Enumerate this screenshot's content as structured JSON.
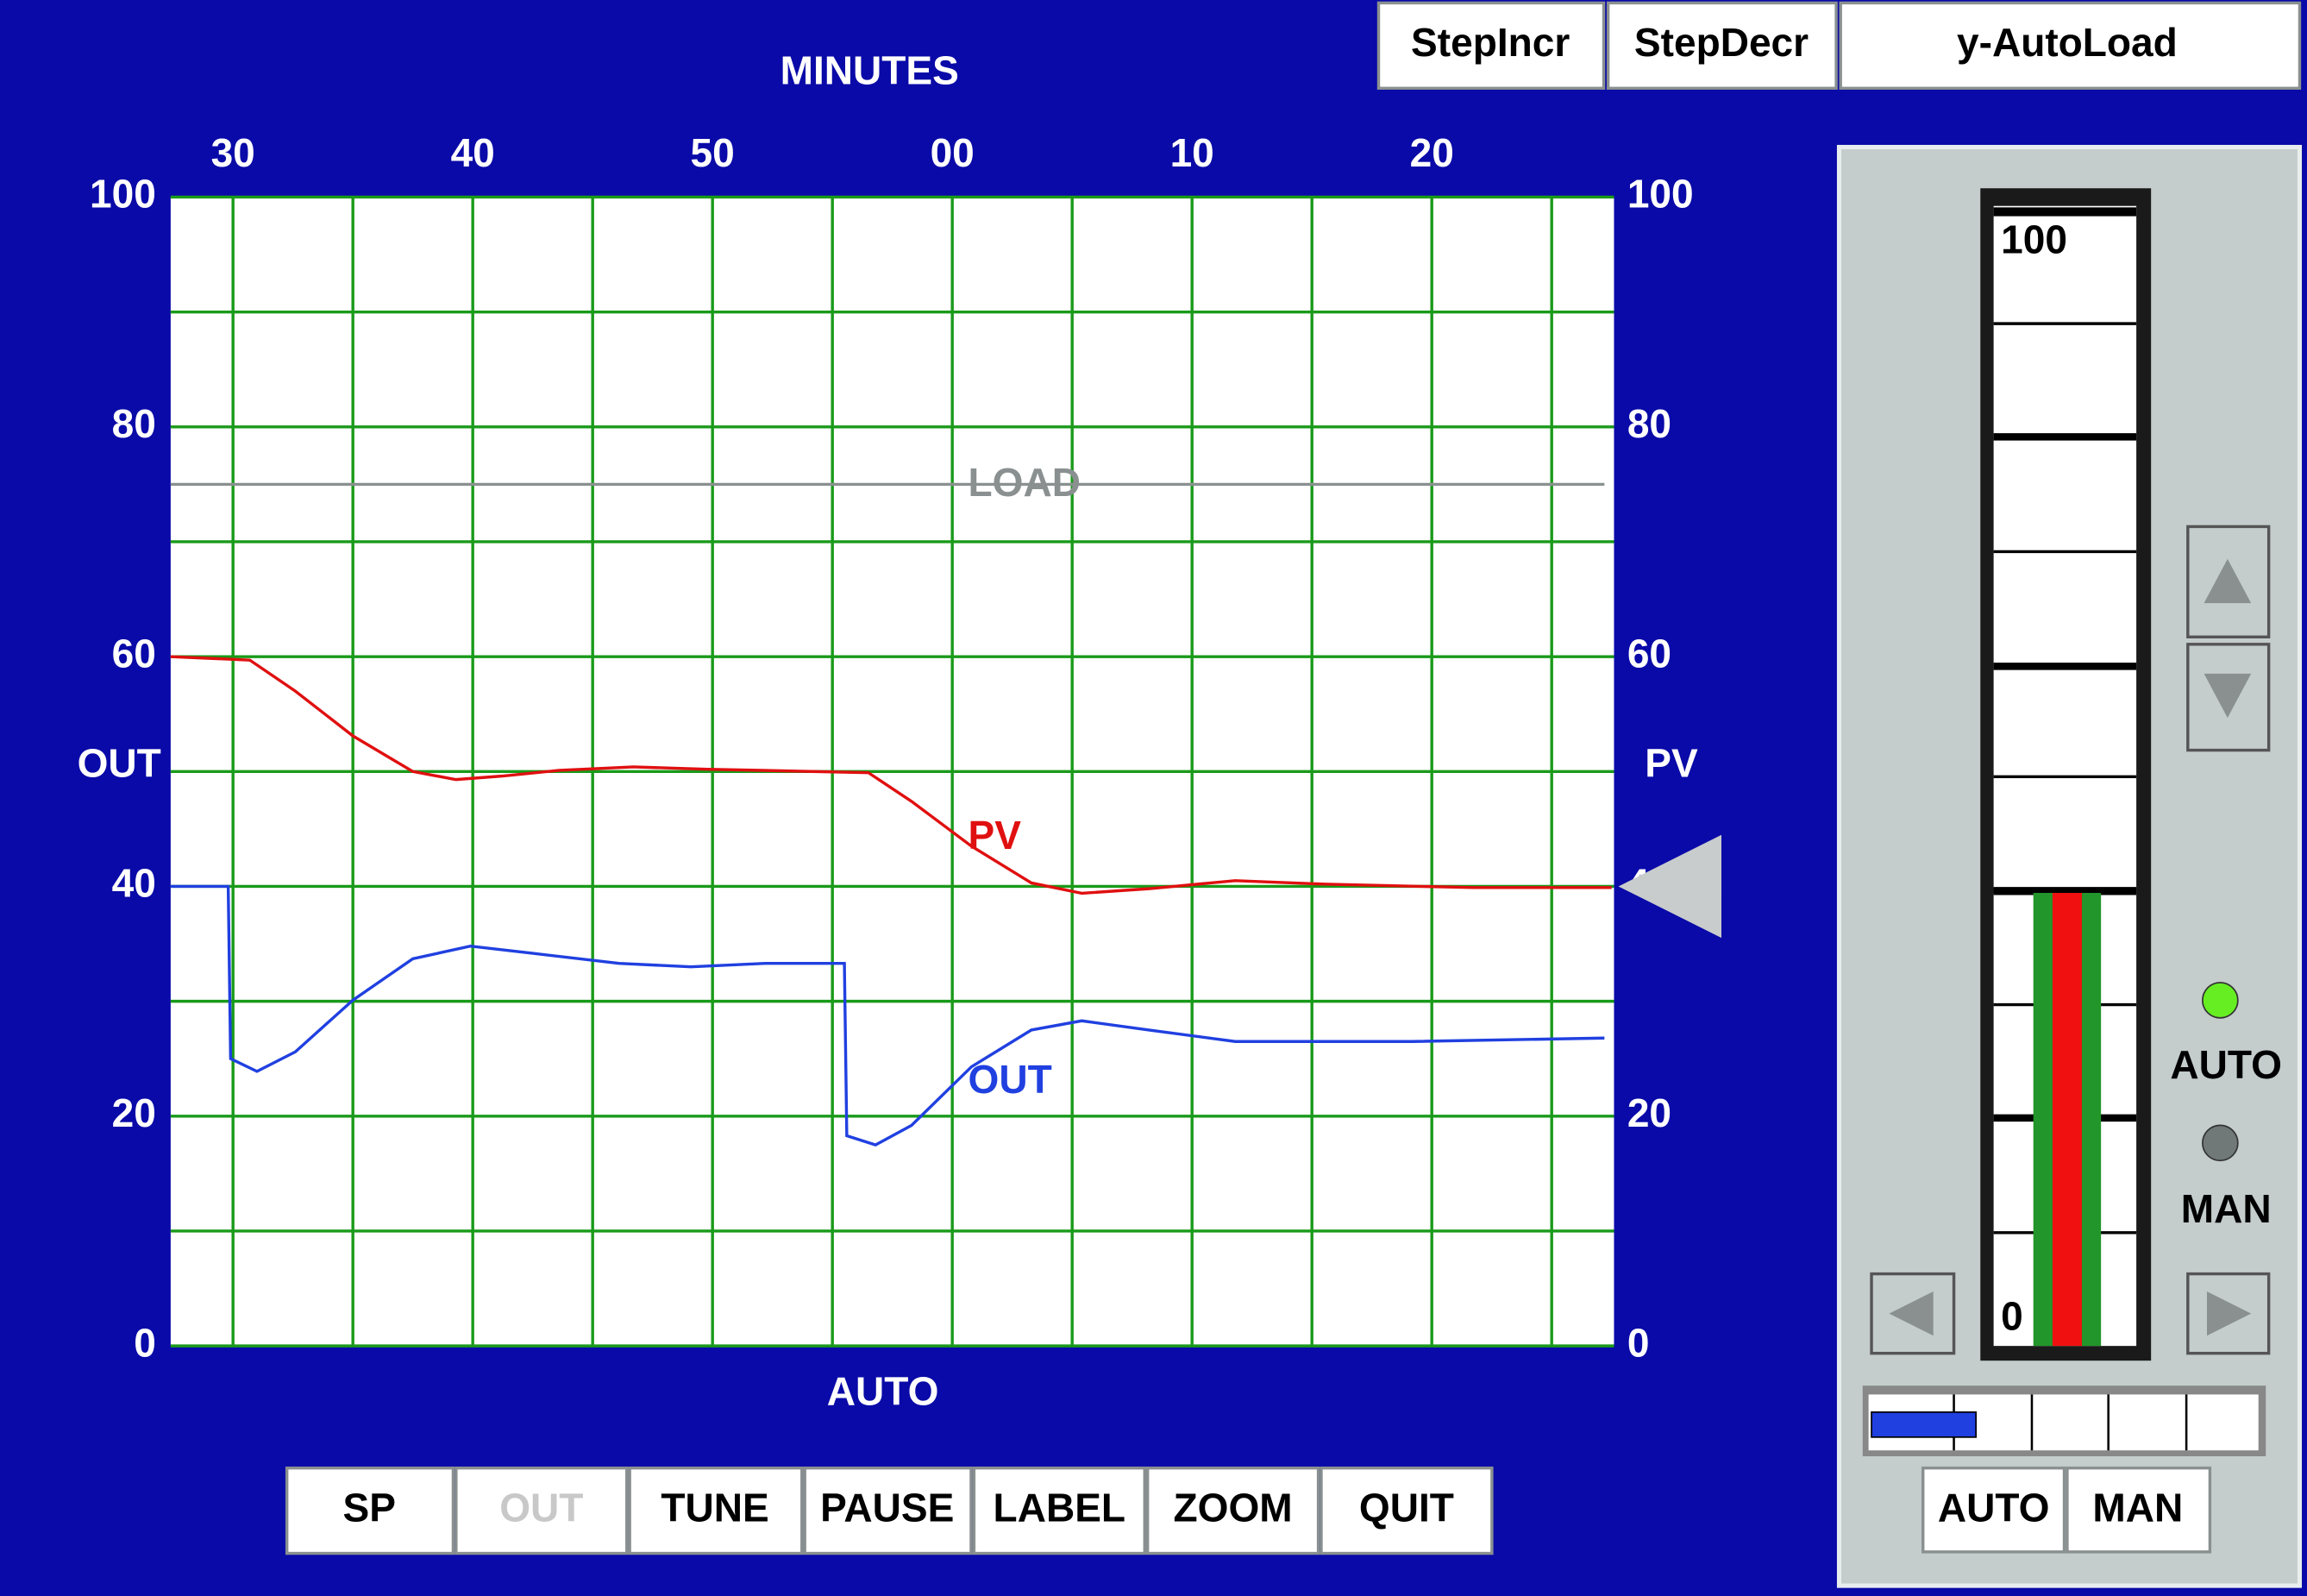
{
  "chart_data": {
    "type": "line",
    "x_label": "MINUTES",
    "bottom_label": "AUTO",
    "y_label": "OUT",
    "y2_label": "PV",
    "xlim": [
      27.4,
      87.6
    ],
    "xticks": [
      30,
      40,
      50,
      {
        "value": 60,
        "label": "00"
      },
      {
        "value": 70,
        "label": "10"
      },
      {
        "value": 80,
        "label": "20"
      }
    ],
    "xgrid": [
      30,
      35,
      40,
      45,
      50,
      55,
      60,
      65,
      70,
      75,
      80,
      85
    ],
    "ylim": [
      0,
      100
    ],
    "yticks": [
      0,
      20,
      40,
      60,
      80,
      100
    ],
    "ygrid": [
      0,
      10,
      20,
      30,
      40,
      50,
      60,
      70,
      80,
      90,
      100
    ],
    "y2lim": [
      0,
      100
    ],
    "y2ticks": [
      0,
      20,
      40,
      60,
      80,
      100
    ],
    "grid": true,
    "setpoint": 40,
    "series": [
      {
        "name": "PV",
        "color": "#e01010",
        "x": [
          27.4,
          30.7,
          32.6,
          35.0,
          37.5,
          39.3,
          41.2,
          43.6,
          46.7,
          49.8,
          56.5,
          58.3,
          60.8,
          63.3,
          65.4,
          68.2,
          71.8,
          75.5,
          81.7,
          87.5
        ],
        "values": [
          60,
          59.7,
          57,
          53.1,
          50,
          49.3,
          49.6,
          50.1,
          50.4,
          50.2,
          49.9,
          47.4,
          43.5,
          40.3,
          39.4,
          39.8,
          40.5,
          40.2,
          39.9,
          39.9
        ]
      },
      {
        "name": "OUT",
        "color": "#2040e0",
        "x": [
          27.4,
          29.8,
          29.9,
          31.0,
          32.6,
          35.0,
          37.5,
          39.9,
          42.4,
          46.1,
          49.1,
          52.2,
          55.5,
          55.6,
          56.8,
          58.3,
          60.8,
          63.3,
          65.4,
          68.2,
          71.8,
          79.2,
          87.2
        ],
        "values": [
          40,
          40,
          25,
          23.9,
          25.6,
          30.1,
          33.7,
          34.8,
          34.2,
          33.3,
          33.0,
          33.3,
          33.3,
          18.3,
          17.5,
          19.2,
          24.3,
          27.5,
          28.3,
          27.5,
          26.5,
          26.5,
          26.8
        ]
      },
      {
        "name": "LOAD",
        "color": "#8a9090",
        "x": [
          27.4,
          87.2
        ],
        "values": [
          75,
          75
        ]
      }
    ]
  },
  "toolbar": [
    "StepIncr",
    "StepDecr",
    "y-AutoLoad"
  ],
  "buttons": [
    "SP",
    "OUT",
    "TUNE",
    "PAUSE",
    "LABEL",
    "ZOOM",
    "QUIT"
  ],
  "panel": {
    "gauge_range": [
      0,
      100
    ],
    "pv": 40,
    "out": 27,
    "auto_label": "AUTO",
    "man_label": "MAN",
    "buttons": [
      "AUTO",
      "MAN"
    ]
  }
}
